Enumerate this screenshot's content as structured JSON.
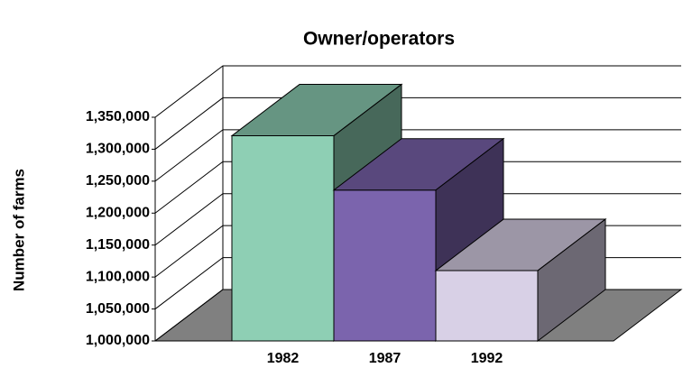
{
  "chart_data": {
    "type": "bar3d",
    "title": "Owner/operators",
    "y_label": "Number of farms",
    "categories": [
      "1982",
      "1987",
      "1992"
    ],
    "values": [
      1321000,
      1236000,
      1110000
    ],
    "colors": [
      "#8ecfb4",
      "#7b64ad",
      "#d8d0e6"
    ],
    "ylim": [
      1000000,
      1350000
    ],
    "yticks": [
      {
        "value": 1000000,
        "label": "1,000,000"
      },
      {
        "value": 1050000,
        "label": "1,050,000"
      },
      {
        "value": 1100000,
        "label": "1,100,000"
      },
      {
        "value": 1150000,
        "label": "1,150,000"
      },
      {
        "value": 1200000,
        "label": "1,200,000"
      },
      {
        "value": 1250000,
        "label": "1,250,000"
      },
      {
        "value": 1300000,
        "label": "1,300,000"
      },
      {
        "value": 1350000,
        "label": "1,350,000"
      }
    ],
    "grid": true
  }
}
